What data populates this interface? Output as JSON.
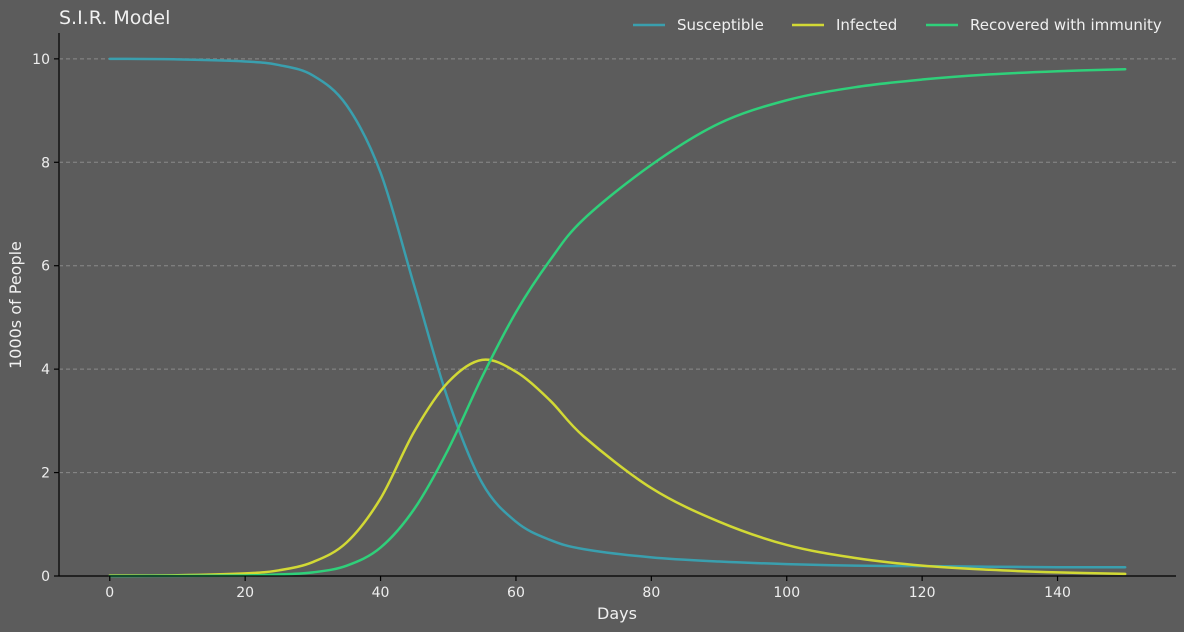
{
  "chart_data": {
    "type": "line",
    "title": "S.I.R. Model",
    "xlabel": "Days",
    "ylabel": "1000s of People",
    "xlim": [
      -7.5,
      157.5
    ],
    "ylim": [
      0,
      10.5
    ],
    "xticks": [
      0,
      20,
      40,
      60,
      80,
      100,
      120,
      140
    ],
    "yticks": [
      0,
      2,
      4,
      6,
      8,
      10
    ],
    "grid": "y-dashed",
    "legend": "top-right",
    "x": [
      0,
      10,
      20,
      25,
      30,
      35,
      40,
      45,
      50,
      55,
      60,
      65,
      70,
      80,
      90,
      100,
      110,
      120,
      130,
      140,
      150
    ],
    "series": [
      {
        "name": "Susceptible",
        "color": "#3a9fae",
        "values": [
          10.0,
          9.99,
          9.95,
          9.88,
          9.68,
          9.1,
          7.8,
          5.6,
          3.4,
          1.8,
          1.05,
          0.7,
          0.52,
          0.36,
          0.28,
          0.23,
          0.2,
          0.19,
          0.18,
          0.17,
          0.17
        ]
      },
      {
        "name": "Infected",
        "color": "#d2d935",
        "values": [
          0.01,
          0.015,
          0.05,
          0.11,
          0.27,
          0.65,
          1.5,
          2.8,
          3.75,
          4.18,
          3.95,
          3.4,
          2.7,
          1.7,
          1.05,
          0.6,
          0.35,
          0.2,
          0.12,
          0.07,
          0.04
        ]
      },
      {
        "name": "Recovered with immunity",
        "color": "#2fd07a",
        "values": [
          0.0,
          0.003,
          0.01,
          0.03,
          0.07,
          0.2,
          0.55,
          1.3,
          2.45,
          3.85,
          5.1,
          6.1,
          6.9,
          7.95,
          8.75,
          9.2,
          9.45,
          9.6,
          9.7,
          9.76,
          9.8
        ]
      }
    ]
  }
}
